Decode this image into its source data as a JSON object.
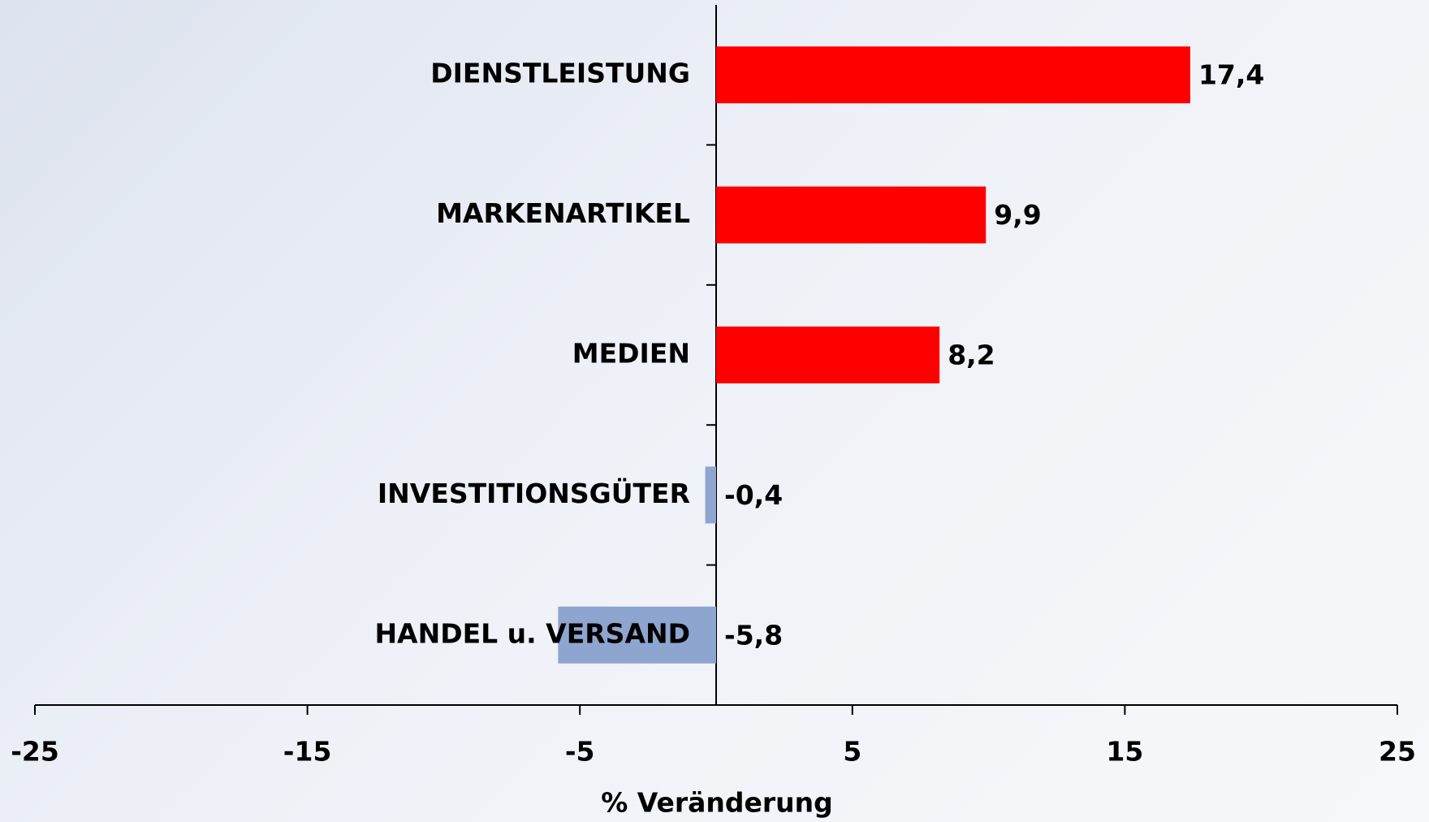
{
  "chart_data": {
    "type": "hbar",
    "x_label": "% Veränderung",
    "categories": [
      "DIENSTLEISTUNG",
      "MARKENARTIKEL",
      "MEDIEN",
      "INVESTITIONSGÜTER",
      "HANDEL u. VERSAND"
    ],
    "values": [
      17.4,
      9.9,
      8.2,
      -0.4,
      -5.8
    ],
    "value_labels": [
      "17,4",
      "9,9",
      "8,2",
      "-0,4",
      "-5,8"
    ],
    "positive_color": "#ff0000",
    "negative_color": "#8ea5cf",
    "xlim": [
      -25,
      25
    ],
    "xticks": [
      -25,
      -15,
      -5,
      5,
      15,
      25
    ]
  }
}
